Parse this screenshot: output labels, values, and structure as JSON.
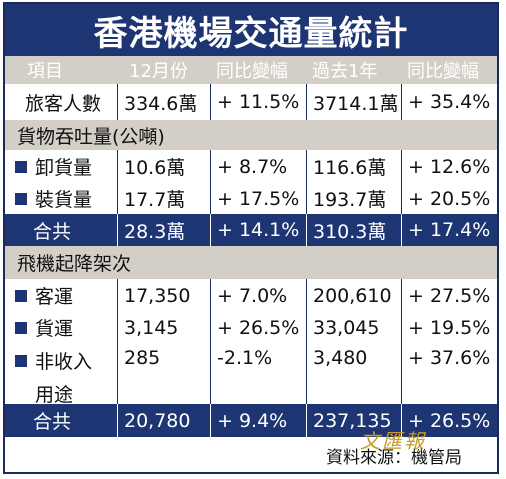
{
  "title": "香港機場交通量統計",
  "header": [
    "項目",
    "12月份",
    "同比變幅",
    "過去1年",
    "同比變幅"
  ],
  "rows": [
    {
      "label": "旅客人數",
      "dec": "334.6萬",
      "dec_change": "+ 11.5%",
      "year": "3714.1萬",
      "year_change": "+ 35.4%"
    }
  ],
  "cargo": {
    "section": "貨物吞吐量(公噸)",
    "rows": [
      {
        "label": "卸貨量",
        "dec": "10.6萬",
        "dec_change": "+ 8.7%",
        "year": "116.6萬",
        "year_change": "+ 12.6%"
      },
      {
        "label": "裝貨量",
        "dec": "17.7萬",
        "dec_change": "+ 17.5%",
        "year": "193.7萬",
        "year_change": "+ 20.5%"
      }
    ],
    "total": {
      "label": "合共",
      "dec": "28.3萬",
      "dec_change": "+ 14.1%",
      "year": "310.3萬",
      "year_change": "+ 17.4%"
    }
  },
  "flights": {
    "section": "飛機起降架次",
    "rows": [
      {
        "label": "客運",
        "dec": "17,350",
        "dec_change": "+ 7.0%",
        "year": "200,610",
        "year_change": "+ 27.5%"
      },
      {
        "label": "貨運",
        "dec": "3,145",
        "dec_change": "+ 26.5%",
        "year": "33,045",
        "year_change": "+ 19.5%"
      },
      {
        "label": "非收入",
        "label2": "用途",
        "dec": "285",
        "dec_change": "-2.1%",
        "year": "3,480",
        "year_change": "+ 37.6%"
      }
    ],
    "total": {
      "label": "合共",
      "dec": "20,780",
      "dec_change": "+ 9.4%",
      "year": "237,135",
      "year_change": "+ 26.5%"
    }
  },
  "watermark": "文匯報",
  "source": "資料來源：機管局",
  "colors": {
    "navy": "#1e3574",
    "beige": "#d4cfc6",
    "gold": "#c79a2a"
  }
}
